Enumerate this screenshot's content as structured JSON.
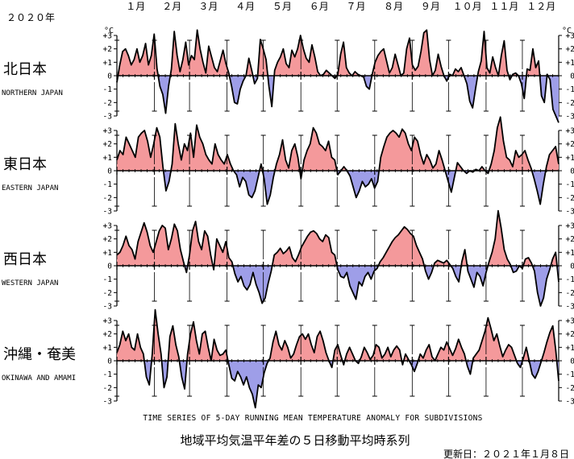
{
  "header": {
    "year": "２０２０年",
    "months": [
      "１月",
      "２月",
      "３月",
      "４月",
      "５月",
      "６月",
      "７月",
      "８月",
      "９月",
      "１０月",
      "１１月",
      "１２月"
    ]
  },
  "unit": "°C",
  "english_title": "TIME SERIES OF 5-DAY RUNNING MEAN TEMPERATURE ANOMALY FOR SUBDIVISIONS",
  "japanese_title": "地域平均気温平年差の５日移動平均時系列",
  "updated": "更新日：２０２１年１月８日",
  "colors": {
    "positive": "#f4999b",
    "negative": "#9e9ee8",
    "line": "#000000"
  },
  "chart_data": {
    "type": "area",
    "ylim": [
      -3,
      3
    ],
    "yticks": [
      "-3",
      "-2",
      "-1",
      "0",
      "+1",
      "+2",
      "+3"
    ],
    "x_unit": "day of year (2020)",
    "x_range": [
      1,
      366
    ],
    "panels": [
      {
        "name_ja": "北日本",
        "name_en": "NORTHERN JAPAN",
        "values": [
          -0.5,
          0.8,
          1.8,
          2.0,
          1.5,
          0.8,
          1.2,
          2.0,
          1.0,
          1.5,
          2.4,
          0.8,
          1.5,
          3.1,
          0.5,
          -0.8,
          -1.4,
          -2.8,
          -0.8,
          0.5,
          3.3,
          1.5,
          0.3,
          1.2,
          2.5,
          0.8,
          1.5,
          1.2,
          3.4,
          2.0,
          1.0,
          0.2,
          2.2,
          1.4,
          0.6,
          0.3,
          1.1,
          1.9,
          0.9,
          0.2,
          -0.8,
          -2.0,
          -2.1,
          -1.0,
          -0.4,
          0.0,
          1.3,
          0.4,
          -0.6,
          -0.2,
          2.7,
          2.0,
          1.2,
          -0.8,
          -2.3,
          0.4,
          1.0,
          1.4,
          2.0,
          0.9,
          0.6,
          1.9,
          1.4,
          2.0,
          3.0,
          2.0,
          1.3,
          1.0,
          2.3,
          1.4,
          0.3,
          0.0,
          0.1,
          0.4,
          0.2,
          0.0,
          -0.2,
          0.1,
          1.6,
          2.5,
          0.6,
          0.2,
          0.0,
          0.3,
          0.1,
          0.0,
          -0.1,
          -0.8,
          -1.0,
          0.1,
          1.0,
          1.5,
          1.8,
          2.0,
          1.1,
          0.2,
          0.6,
          1.6,
          0.8,
          0.0,
          0.2,
          2.0,
          2.8,
          0.8,
          0.4,
          0.7,
          1.8,
          3.2,
          3.4,
          1.2,
          0.0,
          0.4,
          1.6,
          0.7,
          0.0,
          -0.4,
          0.1,
          0.0,
          0.5,
          0.3,
          0.6,
          0.0,
          -0.6,
          -1.9,
          -2.4,
          -1.0,
          0.3,
          1.1,
          3.3,
          0.6,
          0.2,
          1.4,
          0.6,
          0.0,
          1.5,
          2.6,
          0.4,
          -0.3,
          0.1,
          0.2,
          0.0,
          -0.6,
          -1.7,
          0.5,
          0.4,
          2.0,
          0.6,
          1.1,
          -1.5,
          -2.0,
          0.1,
          -0.3,
          -2.5,
          -3.0,
          -3.5
        ],
        "dates": []
      },
      {
        "name_ja": "東日本",
        "name_en": "EASTERN JAPAN",
        "values": [
          0.8,
          1.5,
          1.2,
          2.5,
          2.0,
          1.5,
          1.0,
          2.5,
          2.8,
          3.0,
          2.2,
          1.0,
          2.0,
          3.2,
          2.5,
          0.3,
          -1.5,
          -0.8,
          0.5,
          3.5,
          2.0,
          0.8,
          2.0,
          1.5,
          2.8,
          1.0,
          3.4,
          2.5,
          2.0,
          1.2,
          0.8,
          0.5,
          2.0,
          1.2,
          0.8,
          0.5,
          1.2,
          0.5,
          0.0,
          -0.3,
          -1.2,
          -0.5,
          -0.8,
          -1.8,
          -2.0,
          -1.5,
          -0.5,
          0.5,
          -0.6,
          -2.5,
          -1.8,
          -0.5,
          0.5,
          1.2,
          2.3,
          0.8,
          0.2,
          1.5,
          2.0,
          1.0,
          -0.6,
          0.8,
          1.5,
          2.0,
          3.2,
          2.8,
          2.0,
          1.8,
          1.5,
          2.2,
          1.0,
          0.8,
          -0.3,
          0.0,
          0.3,
          0.0,
          -0.4,
          -1.2,
          -2.0,
          -1.5,
          -0.8,
          -1.2,
          -1.0,
          -0.6,
          -1.3,
          -0.8,
          1.0,
          1.8,
          2.5,
          2.8,
          3.0,
          2.8,
          2.5,
          3.1,
          2.8,
          2.0,
          1.5,
          2.5,
          2.2,
          1.2,
          0.5,
          1.2,
          0.8,
          0.2,
          0.5,
          1.5,
          0.8,
          0.0,
          -0.8,
          -1.6,
          -0.5,
          0.6,
          0.3,
          0.0,
          -0.2,
          0.0,
          -0.1,
          0.1,
          0.0,
          0.3,
          0.0,
          -0.2,
          0.5,
          1.5,
          3.2,
          4.0,
          2.2,
          1.0,
          0.8,
          0.3,
          1.5,
          1.0,
          1.2,
          1.5,
          0.8,
          0.2,
          -0.6,
          -1.5,
          -2.5,
          -1.0,
          0.3,
          1.2,
          1.5,
          1.8,
          0.5
        ],
        "dates": []
      },
      {
        "name_ja": "西日本",
        "name_en": "WESTERN JAPAN",
        "values": [
          0.8,
          1.0,
          1.5,
          2.2,
          1.5,
          1.2,
          0.5,
          1.8,
          2.5,
          3.2,
          2.5,
          1.5,
          1.0,
          1.8,
          2.6,
          3.0,
          2.8,
          1.2,
          2.0,
          3.1,
          2.6,
          1.2,
          0.3,
          -0.5,
          0.8,
          2.6,
          3.3,
          1.8,
          1.2,
          2.6,
          2.2,
          0.8,
          -0.3,
          2.0,
          1.5,
          1.0,
          1.8,
          0.6,
          0.3,
          -0.6,
          -1.2,
          -0.8,
          -1.5,
          -1.8,
          -1.4,
          -0.5,
          -1.4,
          -2.0,
          -2.8,
          -2.4,
          -1.3,
          -0.4,
          0.8,
          1.0,
          1.3,
          0.9,
          1.1,
          1.4,
          0.6,
          0.3,
          0.8,
          1.4,
          1.8,
          2.2,
          2.5,
          2.6,
          2.4,
          2.0,
          1.8,
          2.3,
          2.1,
          1.0,
          0.8,
          -0.3,
          -0.8,
          -0.9,
          -0.5,
          -1.5,
          -2.0,
          -2.5,
          -1.2,
          -1.5,
          -0.8,
          -0.5,
          -1.0,
          -0.4,
          -0.2,
          0.3,
          0.6,
          1.0,
          1.4,
          1.8,
          2.1,
          2.3,
          2.6,
          2.9,
          2.7,
          2.4,
          2.2,
          1.5,
          1.0,
          0.5,
          -0.4,
          -1.0,
          -0.5,
          0.2,
          0.4,
          0.3,
          0.2,
          0.4,
          0.1,
          -0.2,
          -0.8,
          -1.2,
          0.3,
          1.2,
          -0.4,
          -1.0,
          -1.6,
          -0.5,
          -0.8,
          -1.5,
          -0.5,
          0.3,
          1.0,
          2.0,
          4.1,
          2.8,
          1.2,
          0.5,
          0.1,
          -0.5,
          -0.4,
          0.0,
          -0.2,
          0.5,
          0.6,
          0.2,
          -0.4,
          -2.0,
          -3.0,
          -2.4,
          -1.0,
          -0.3,
          0.5,
          1.0,
          -1.2
        ],
        "dates": []
      },
      {
        "name_ja": "沖縄・奄美",
        "name_en": "OKINAWA AND AMAMI",
        "values": [
          0.6,
          1.2,
          2.2,
          1.5,
          2.0,
          1.0,
          0.8,
          2.0,
          1.0,
          0.5,
          -1.2,
          -1.8,
          0.5,
          3.8,
          2.0,
          0.5,
          -2.0,
          -1.2,
          1.8,
          2.6,
          1.2,
          0.3,
          -1.2,
          -2.1,
          0.5,
          2.0,
          2.9,
          1.5,
          0.5,
          2.0,
          2.2,
          1.0,
          0.0,
          1.6,
          0.8,
          0.4,
          0.5,
          0.8,
          -0.3,
          -1.3,
          -1.5,
          -0.8,
          -1.2,
          -1.8,
          -1.2,
          -2.0,
          -2.5,
          -3.5,
          -1.8,
          -2.0,
          -0.9,
          -0.2,
          0.2,
          1.4,
          2.2,
          1.2,
          0.8,
          1.5,
          1.0,
          0.2,
          0.5,
          1.2,
          1.8,
          2.0,
          1.6,
          2.0,
          1.2,
          0.6,
          1.8,
          2.2,
          1.5,
          0.6,
          0.0,
          -0.5,
          0.8,
          1.2,
          0.4,
          -0.3,
          0.5,
          1.0,
          0.5,
          0.0,
          -0.2,
          0.3,
          1.0,
          0.6,
          0.1,
          0.4,
          1.2,
          1.0,
          0.2,
          0.5,
          1.0,
          0.3,
          0.8,
          1.1,
          0.8,
          -0.3,
          0.5,
          0.1,
          -0.3,
          -0.8,
          -0.2,
          0.5,
          0.2,
          0.8,
          1.2,
          0.3,
          0.0,
          0.5,
          1.0,
          0.8,
          1.4,
          0.9,
          0.4,
          0.9,
          1.6,
          1.0,
          0.5,
          -0.4,
          -1.0,
          0.2,
          0.5,
          0.8,
          1.5,
          2.2,
          3.2,
          2.4,
          1.5,
          2.0,
          1.1,
          0.3,
          0.8,
          1.2,
          1.0,
          0.4,
          -0.2,
          -0.5,
          0.2,
          1.0,
          0.0,
          -1.0,
          -1.3,
          -0.8,
          -0.1,
          0.6,
          1.4,
          2.1,
          2.6,
          0.8,
          -1.5
        ],
        "dates": []
      }
    ]
  }
}
